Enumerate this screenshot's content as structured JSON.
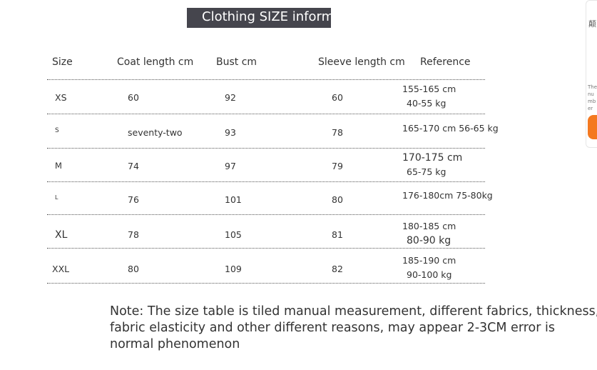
{
  "header": {
    "title": "Clothing SIZE inform"
  },
  "table": {
    "columns": [
      "Size",
      "Coat length cm",
      "Bust cm",
      "Sleeve length cm",
      "Reference"
    ],
    "rows": [
      [
        "XS",
        "60",
        "92",
        "60",
        [
          "155-165 cm",
          "40-55 kg"
        ]
      ],
      [
        "S",
        "seventy-two",
        "93",
        "78",
        [
          "165-170 cm 56-65 kg"
        ]
      ],
      [
        "M",
        "74",
        "97",
        "79",
        [
          "170-175 cm",
          "65-75 kg"
        ]
      ],
      [
        "L",
        "76",
        "101",
        "80",
        [
          "176-180cm 75-80kg"
        ]
      ],
      [
        "XL",
        "78",
        "105",
        "81",
        [
          "180-185 cm",
          "80-90 kg"
        ]
      ],
      [
        "XXL",
        "80",
        "109",
        "82",
        [
          "185-190 cm",
          "90-100 kg"
        ]
      ]
    ]
  },
  "note": "Note: The size table is tiled manual measurement, different fabrics, thickness, fabric elasticity and other different reasons, may appear 2-3CM error is normal phenomenon",
  "side_panel": {
    "texts": [
      "颠",
      "The nu mb er"
    ]
  }
}
